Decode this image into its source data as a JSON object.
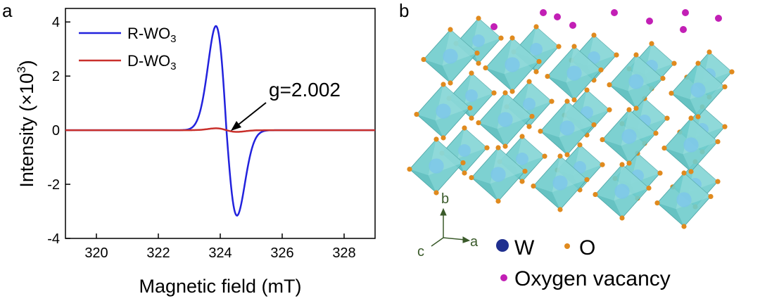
{
  "panels": {
    "left": "a",
    "right": "b"
  },
  "chart_data": {
    "type": "line",
    "xlabel": "Magnetic field (mT)",
    "ylabel": "Intensity (×10",
    "ylabel_exp": "3",
    "ylabel_close": ")",
    "xlim": [
      319,
      329
    ],
    "ylim": [
      -4,
      4.5
    ],
    "xticks": [
      320,
      322,
      324,
      326,
      328
    ],
    "yticks": [
      4,
      2,
      0,
      -2,
      -4
    ],
    "grid": false,
    "legend_position": "top-left",
    "series": [
      {
        "name": "R-WO",
        "name_sub": "3",
        "color": "#2222dd",
        "center": 324.2,
        "width": 0.34,
        "amplitude": 3.85,
        "asymmetry": 0.82
      },
      {
        "name": "D-WO",
        "name_sub": "3",
        "color": "#c9302c",
        "center": 324.2,
        "width": 0.34,
        "amplitude": 0.07,
        "asymmetry": 0.9
      }
    ],
    "annotation": {
      "text": "g=2.002",
      "x": 324.2,
      "y": 0
    }
  },
  "crystal": {
    "axes": {
      "a": "a",
      "b": "b",
      "c": "c"
    },
    "legend": {
      "w": "W",
      "w_color": "#1f2f8f",
      "o": "O",
      "o_color": "#e08a1e",
      "vacancy": "Oxygen vacancy",
      "vacancy_color": "#c21fb5"
    },
    "octahedron_color": "#6fcccc"
  }
}
